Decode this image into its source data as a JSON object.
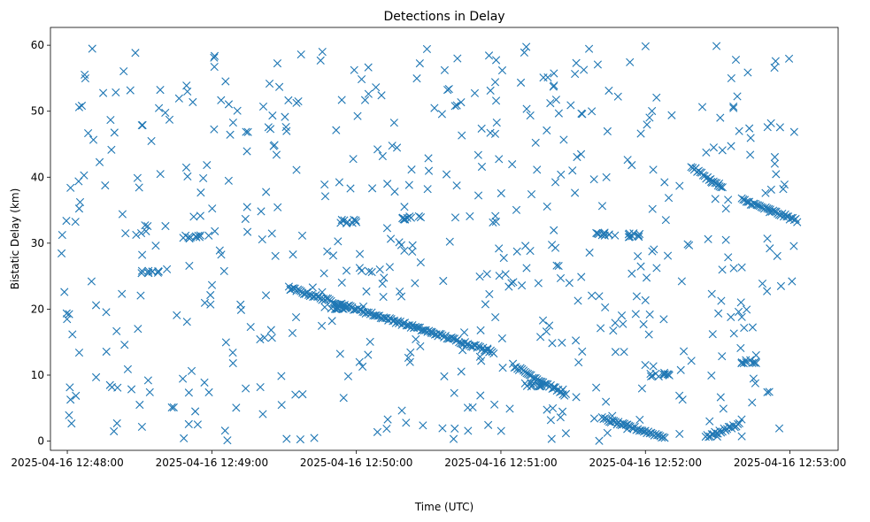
{
  "chart_data": {
    "type": "scatter",
    "title": "Detections in Delay",
    "xlabel": "Time (UTC)",
    "ylabel": "Bistatic Delay (km)",
    "marker": "x",
    "color": "#1f77b4",
    "grid": false,
    "x_ticks": [
      "2025-04-16 12:48:00",
      "2025-04-16 12:49:00",
      "2025-04-16 12:50:00",
      "2025-04-16 12:51:00",
      "2025-04-16 12:52:00",
      "2025-04-16 12:53:00"
    ],
    "y_ticks": [
      "0",
      "10",
      "20",
      "30",
      "40",
      "50",
      "60"
    ],
    "x_range": [
      "2025-04-16 12:47:53",
      "2025-04-16 12:53:20"
    ],
    "ylim": [
      -1.4,
      62.7
    ],
    "tracks": [
      {
        "x_start": "2025-04-16 12:49:32",
        "x_end": "2025-04-16 12:50:57",
        "y_start": 23.2,
        "y_end": 13.5,
        "note": "linear descending track"
      },
      {
        "x_start": "2025-04-16 12:51:05",
        "x_end": "2025-04-16 12:51:27",
        "y_start": 11.5,
        "y_end": 7.0
      },
      {
        "x_start": "2025-04-16 12:51:42",
        "x_end": "2025-04-16 12:52:08",
        "y_start": 3.4,
        "y_end": 0.6
      },
      {
        "x_start": "2025-04-16 12:52:25",
        "x_end": "2025-04-16 12:52:39",
        "y_start": 0.6,
        "y_end": 2.6
      },
      {
        "x_start": "2025-04-16 12:52:19",
        "x_end": "2025-04-16 12:52:32",
        "y_start": 41.6,
        "y_end": 38.3
      },
      {
        "x_start": "2025-04-16 12:52:40",
        "x_end": "2025-04-16 12:53:03",
        "y_start": 36.6,
        "y_end": 33.4
      }
    ],
    "clusters": [
      {
        "x": "2025-04-16 12:51:55",
        "y": 31.2
      },
      {
        "x": "2025-04-16 12:49:53",
        "y": 20.0
      },
      {
        "x": "2025-04-16 12:48:52",
        "y": 31.0
      },
      {
        "x": "2025-04-16 12:51:44",
        "y": 31.3
      },
      {
        "x": "2025-04-16 12:52:43",
        "y": 12.0
      },
      {
        "x": "2025-04-16 12:51:14",
        "y": 8.5
      },
      {
        "x": "2025-04-16 12:49:57",
        "y": 33.3
      },
      {
        "x": "2025-04-16 12:50:23",
        "y": 33.8
      },
      {
        "x": "2025-04-16 12:52:06",
        "y": 10.0
      },
      {
        "x": "2025-04-16 12:48:34",
        "y": 25.6
      }
    ],
    "background_points_note": "Roughly uniform scatter of individual detections across 0–60 km over the full time range"
  }
}
